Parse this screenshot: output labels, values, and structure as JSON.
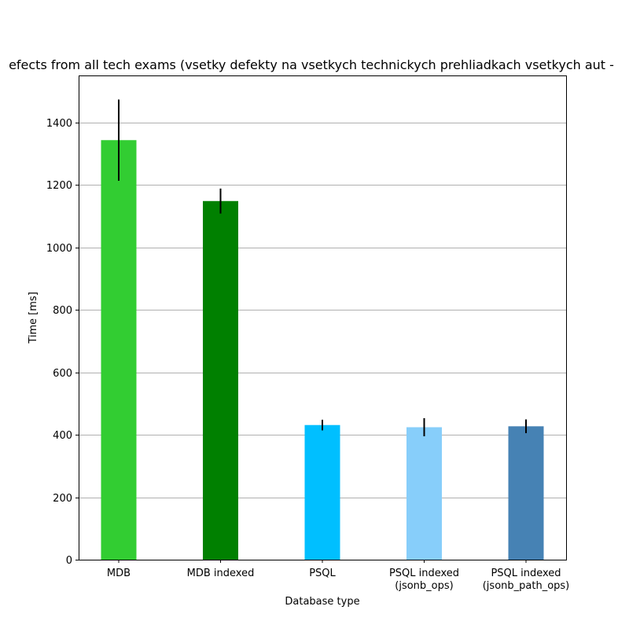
{
  "chart_data": {
    "type": "bar",
    "title": "efects from all tech exams (vsetky defekty na vsetkych technickych prehliadkach vsetkych aut -",
    "xlabel": "Database type",
    "ylabel": "Time [ms]",
    "ylim": [
      0,
      1550
    ],
    "yticks": [
      0,
      200,
      400,
      600,
      800,
      1000,
      1200,
      1400
    ],
    "grid": "y",
    "categories": [
      "MDB",
      "MDB indexed",
      "PSQL",
      "PSQL indexed\n(jsonb_ops)",
      "PSQL indexed\n(jsonb_path_ops)"
    ],
    "values": [
      1343,
      1148,
      431,
      424,
      427
    ],
    "errors": [
      130,
      40,
      17,
      29,
      22
    ],
    "colors": [
      "#32cd32",
      "#008000",
      "#00bfff",
      "#87cefa",
      "#4682b4"
    ],
    "error_color": "#000000",
    "grid_color": "#b0b0b0"
  }
}
